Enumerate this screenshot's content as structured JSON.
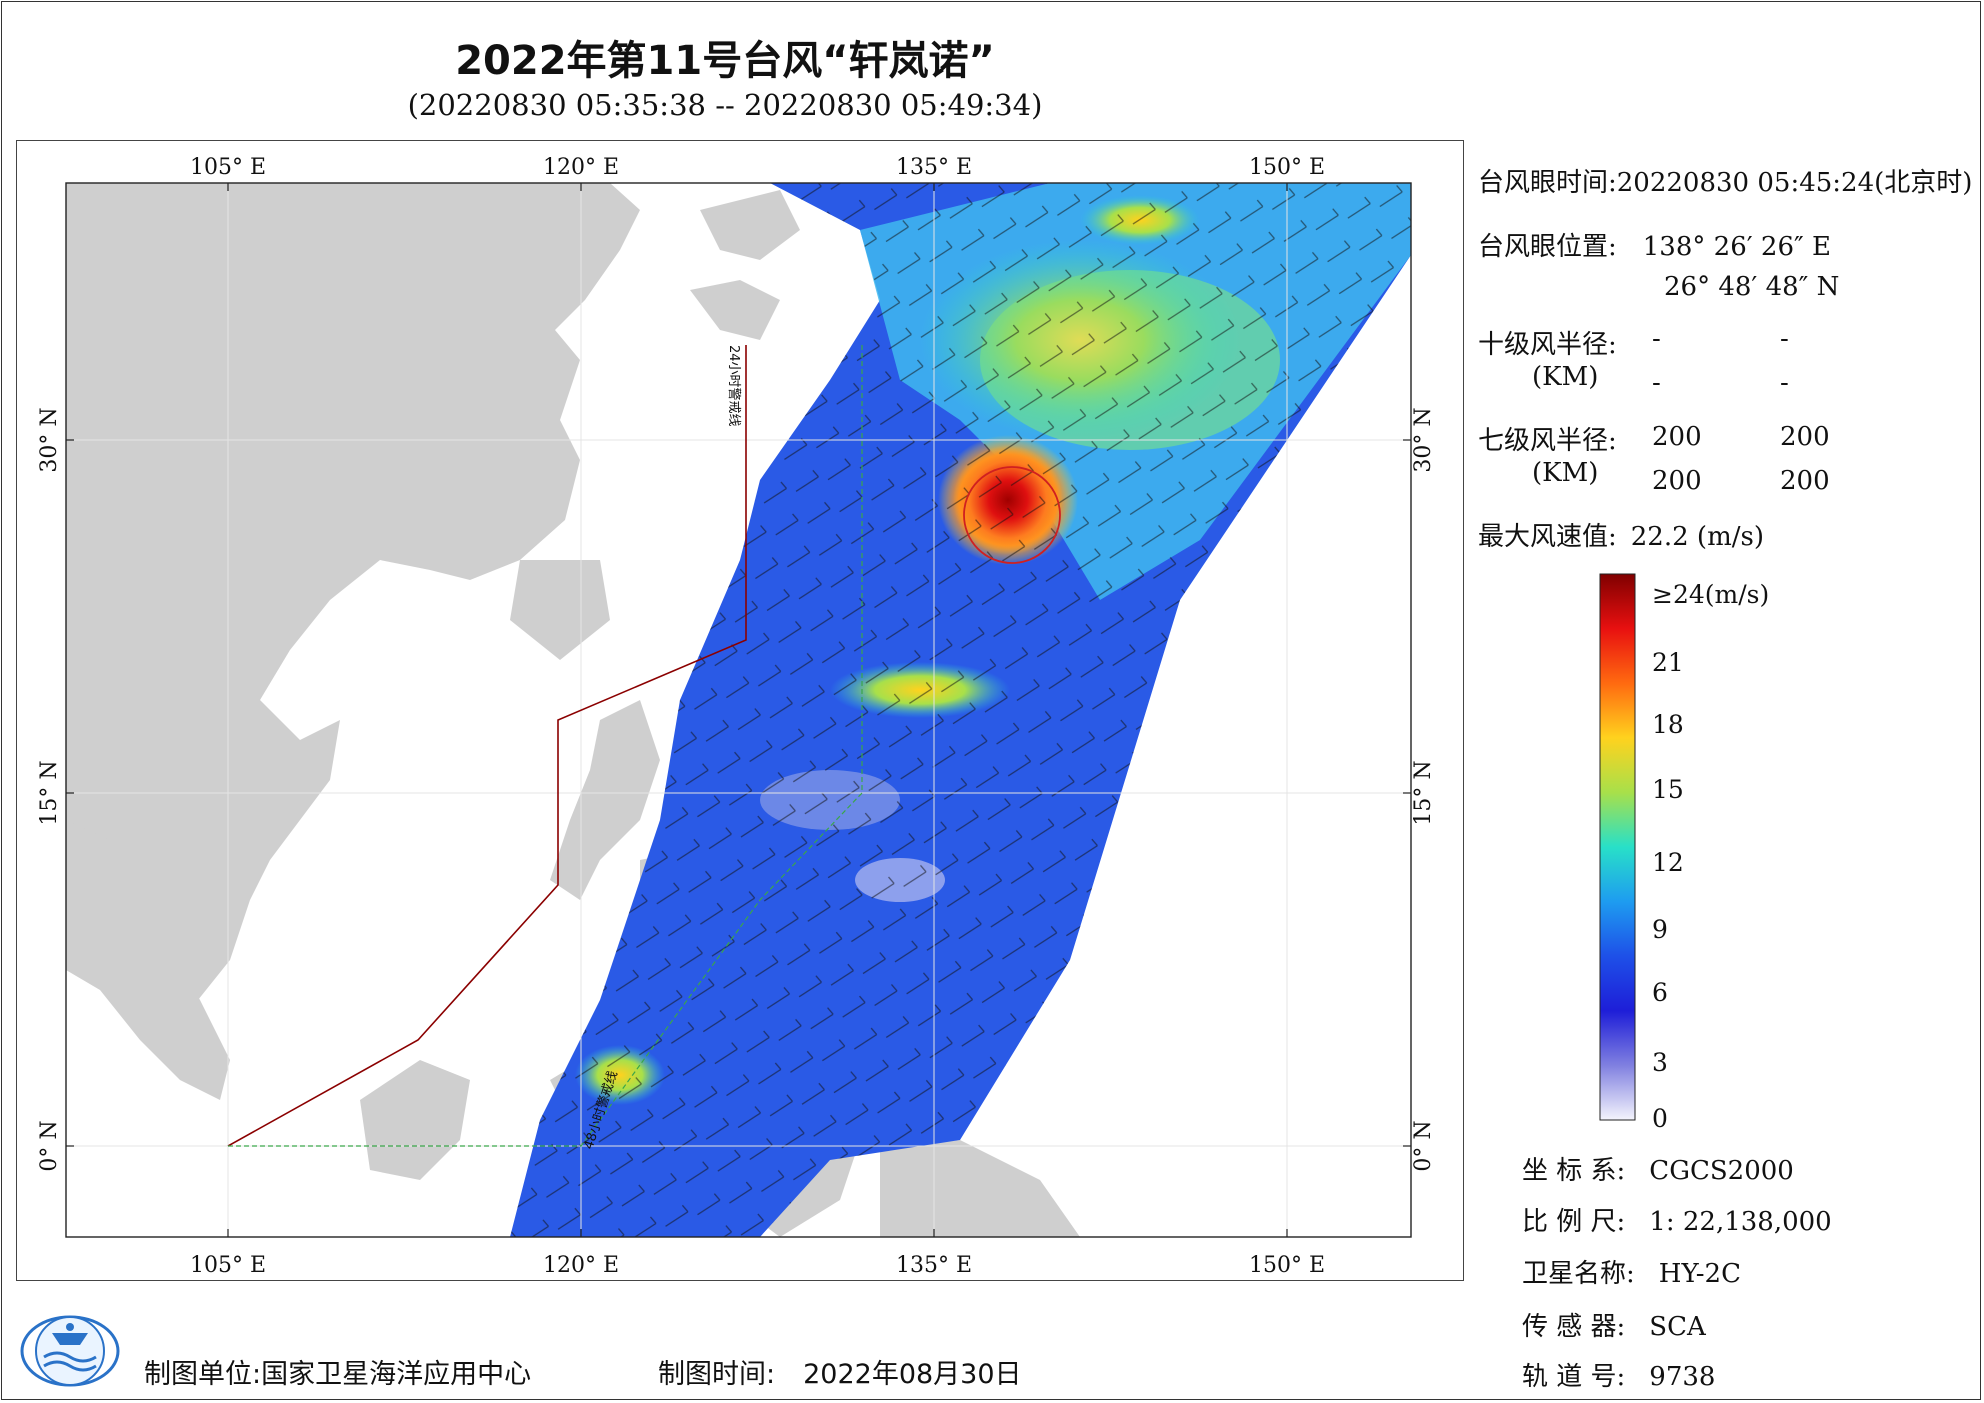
{
  "header": {
    "title": "2022年第11号台风“轩岚诺”",
    "subtitle": "(20220830 05:35:38 -- 20220830 05:49:34)"
  },
  "map": {
    "lon_ticks": [
      "105° E",
      "120° E",
      "135° E",
      "150° E"
    ],
    "lat_ticks": [
      "30° N",
      "15° N",
      "0° N"
    ],
    "line_labels": {
      "warning_24h": "24小时警戒线",
      "warning_48h": "48小时警戒线"
    },
    "colors": {
      "land": "#cfcfcf",
      "ocean": "#ffffff",
      "warning_line": "#8b0000",
      "green_line": "#3aa64a",
      "eye_circle": "#d02020"
    }
  },
  "info": {
    "eye_time_label": "台风眼时间:",
    "eye_time_value": "20220830 05:45:24(北京时)",
    "eye_pos_label": "台风眼位置:",
    "eye_lon": "138° 26′ 26″ E",
    "eye_lat": "26° 48′ 48″ N",
    "r10_label": "十级风半径:",
    "r10_unit": "(KM)",
    "r10_values": [
      "-",
      "-",
      "-",
      "-"
    ],
    "r7_label": "七级风半径:",
    "r7_unit": "(KM)",
    "r7_values": [
      "200",
      "200",
      "200",
      "200"
    ],
    "max_wind_label": "最大风速值:",
    "max_wind_value": "22.2 (m/s)"
  },
  "colorbar": {
    "top_label": "≥24(m/s)",
    "labels": [
      "21",
      "18",
      "15",
      "12",
      "9",
      "6",
      "3",
      "0"
    ],
    "stops": [
      "#800000",
      "#e81010",
      "#ff6a10",
      "#ffd21e",
      "#a8e04a",
      "#28e0c8",
      "#1e9cf0",
      "#1e50e8",
      "#1e1ed8",
      "#8080e0",
      "#f4f4fc"
    ]
  },
  "meta": {
    "crs_label": "坐 标 系:",
    "crs_value": "CGCS2000",
    "scale_label": "比 例 尺:",
    "scale_value": "1: 22,138,000",
    "satellite_label": "卫星名称:",
    "satellite_value": "HY-2C",
    "sensor_label": "传 感 器:",
    "sensor_value": "SCA",
    "orbit_label": "轨 道 号:",
    "orbit_value": "9738"
  },
  "footer": {
    "org_label": "制图单位:",
    "org_value": "国家卫星海洋应用中心",
    "date_label": "制图时间:",
    "date_value": "2022年08月30日"
  }
}
